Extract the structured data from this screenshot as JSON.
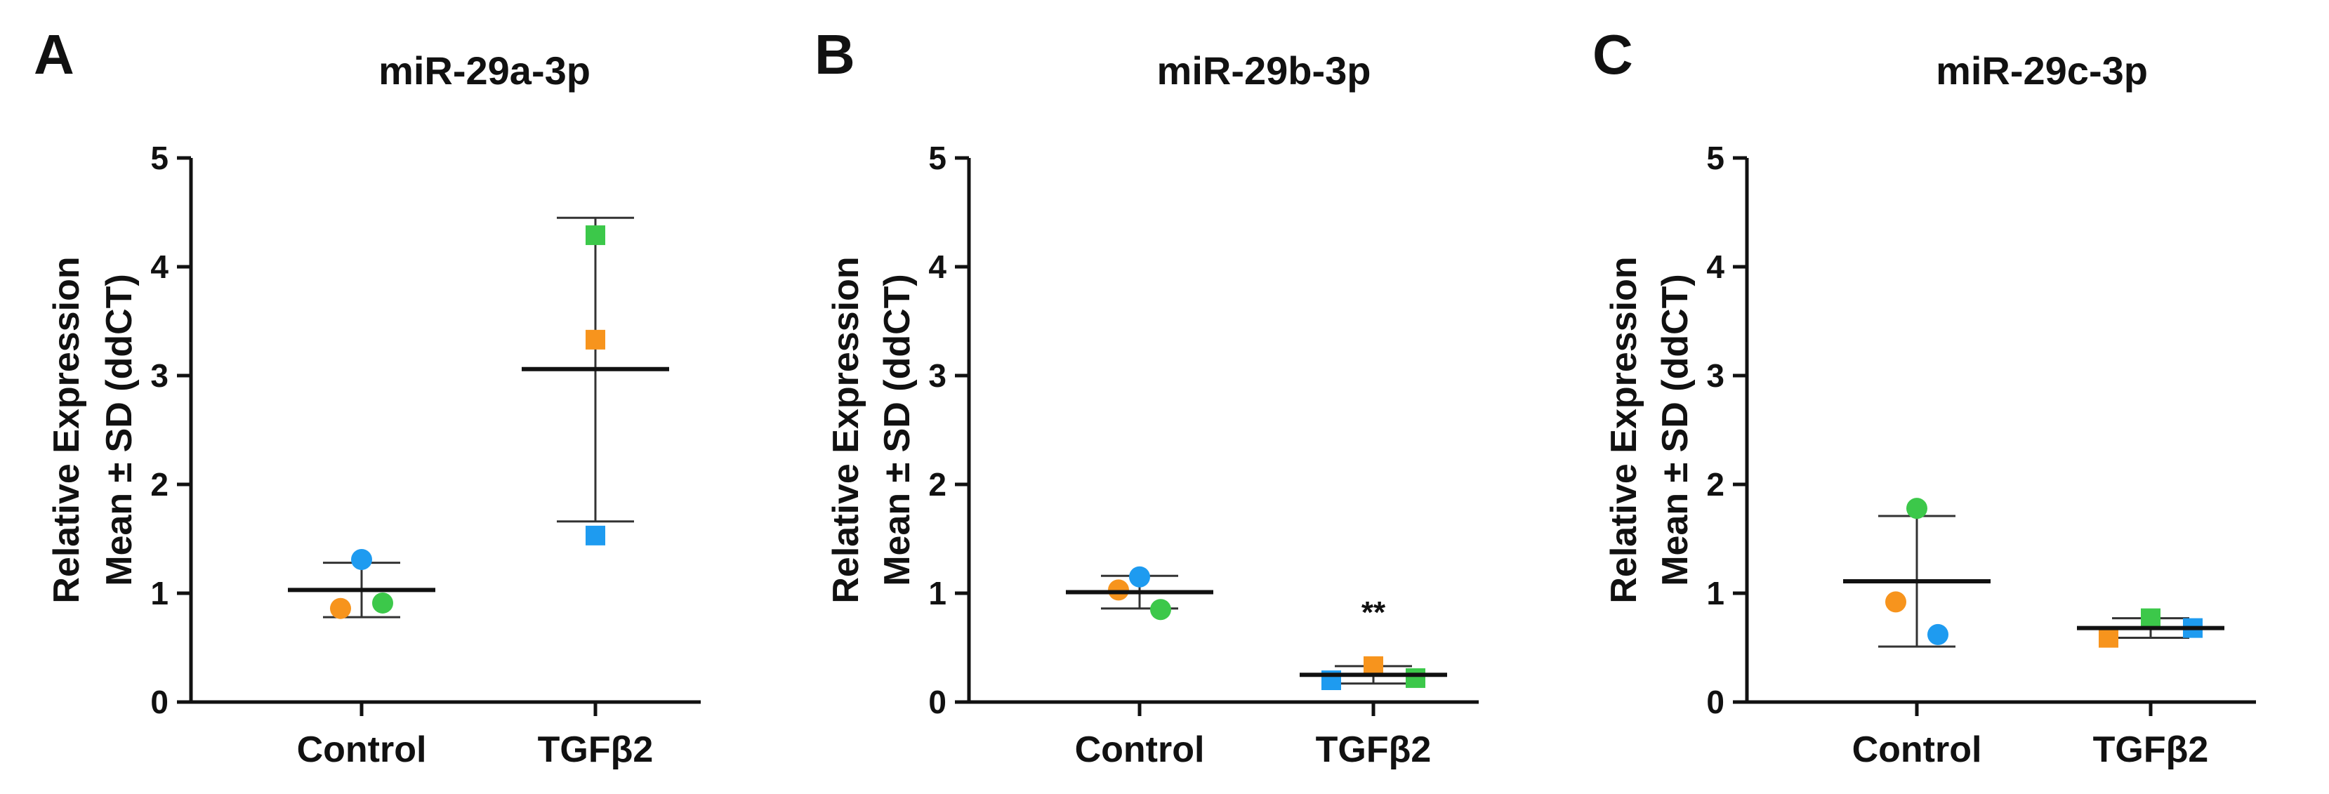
{
  "chart_data": [
    {
      "type": "scatter",
      "panel_letter": "A",
      "title": "miR-29a-3p",
      "ylabel_line1": "Relative Expression",
      "ylabel_line2": "Mean ± SD (ddCT)",
      "categories": [
        "Control",
        "TGFβ2"
      ],
      "ylim": [
        0,
        5
      ],
      "yticks": [
        "0",
        "1",
        "2",
        "3",
        "4",
        "5"
      ],
      "groups": [
        {
          "category": "Control",
          "marker": "circle",
          "mean": 1.03,
          "sd_low": 0.78,
          "sd_high": 1.28,
          "points": [
            {
              "value": 1.31,
              "color": "#1e9bf0"
            },
            {
              "value": 0.86,
              "color": "#f7941d"
            },
            {
              "value": 0.91,
              "color": "#3cc84a"
            }
          ]
        },
        {
          "category": "TGFβ2",
          "marker": "square",
          "mean": 3.06,
          "sd_low": 1.66,
          "sd_high": 4.45,
          "points": [
            {
              "value": 4.29,
              "color": "#3cc84a"
            },
            {
              "value": 3.33,
              "color": "#f7941d"
            },
            {
              "value": 1.53,
              "color": "#1e9bf0"
            }
          ]
        }
      ],
      "significance": []
    },
    {
      "type": "scatter",
      "panel_letter": "B",
      "title": "miR-29b-3p",
      "ylabel_line1": "Relative Expression",
      "ylabel_line2": "Mean ± SD (ddCT)",
      "categories": [
        "Control",
        "TGFβ2"
      ],
      "ylim": [
        0,
        5
      ],
      "yticks": [
        "0",
        "1",
        "2",
        "3",
        "4",
        "5"
      ],
      "groups": [
        {
          "category": "Control",
          "marker": "circle",
          "mean": 1.01,
          "sd_low": 0.86,
          "sd_high": 1.16,
          "points": [
            {
              "value": 1.15,
              "color": "#1e9bf0"
            },
            {
              "value": 1.03,
              "color": "#f7941d"
            },
            {
              "value": 0.85,
              "color": "#3cc84a"
            }
          ]
        },
        {
          "category": "TGFβ2",
          "marker": "square",
          "mean": 0.25,
          "sd_low": 0.17,
          "sd_high": 0.33,
          "points": [
            {
              "value": 0.2,
              "color": "#1e9bf0"
            },
            {
              "value": 0.33,
              "color": "#f7941d"
            },
            {
              "value": 0.22,
              "color": "#3cc84a"
            }
          ]
        }
      ],
      "significance": [
        {
          "category": "TGFβ2",
          "label": "**",
          "value": 0.73
        }
      ]
    },
    {
      "type": "scatter",
      "panel_letter": "C",
      "title": "miR-29c-3p",
      "ylabel_line1": "Relative Expression",
      "ylabel_line2": "Mean ± SD (ddCT)",
      "categories": [
        "Control",
        "TGFβ2"
      ],
      "ylim": [
        0,
        5
      ],
      "yticks": [
        "0",
        "1",
        "2",
        "3",
        "4",
        "5"
      ],
      "groups": [
        {
          "category": "Control",
          "marker": "circle",
          "mean": 1.11,
          "sd_low": 0.51,
          "sd_high": 1.71,
          "points": [
            {
              "value": 1.78,
              "color": "#3cc84a"
            },
            {
              "value": 0.92,
              "color": "#f7941d"
            },
            {
              "value": 0.62,
              "color": "#1e9bf0"
            }
          ]
        },
        {
          "category": "TGFβ2",
          "marker": "square",
          "mean": 0.68,
          "sd_low": 0.59,
          "sd_high": 0.77,
          "points": [
            {
              "value": 0.59,
              "color": "#f7941d"
            },
            {
              "value": 0.77,
              "color": "#3cc84a"
            },
            {
              "value": 0.68,
              "color": "#1e9bf0"
            }
          ]
        }
      ],
      "significance": []
    }
  ]
}
